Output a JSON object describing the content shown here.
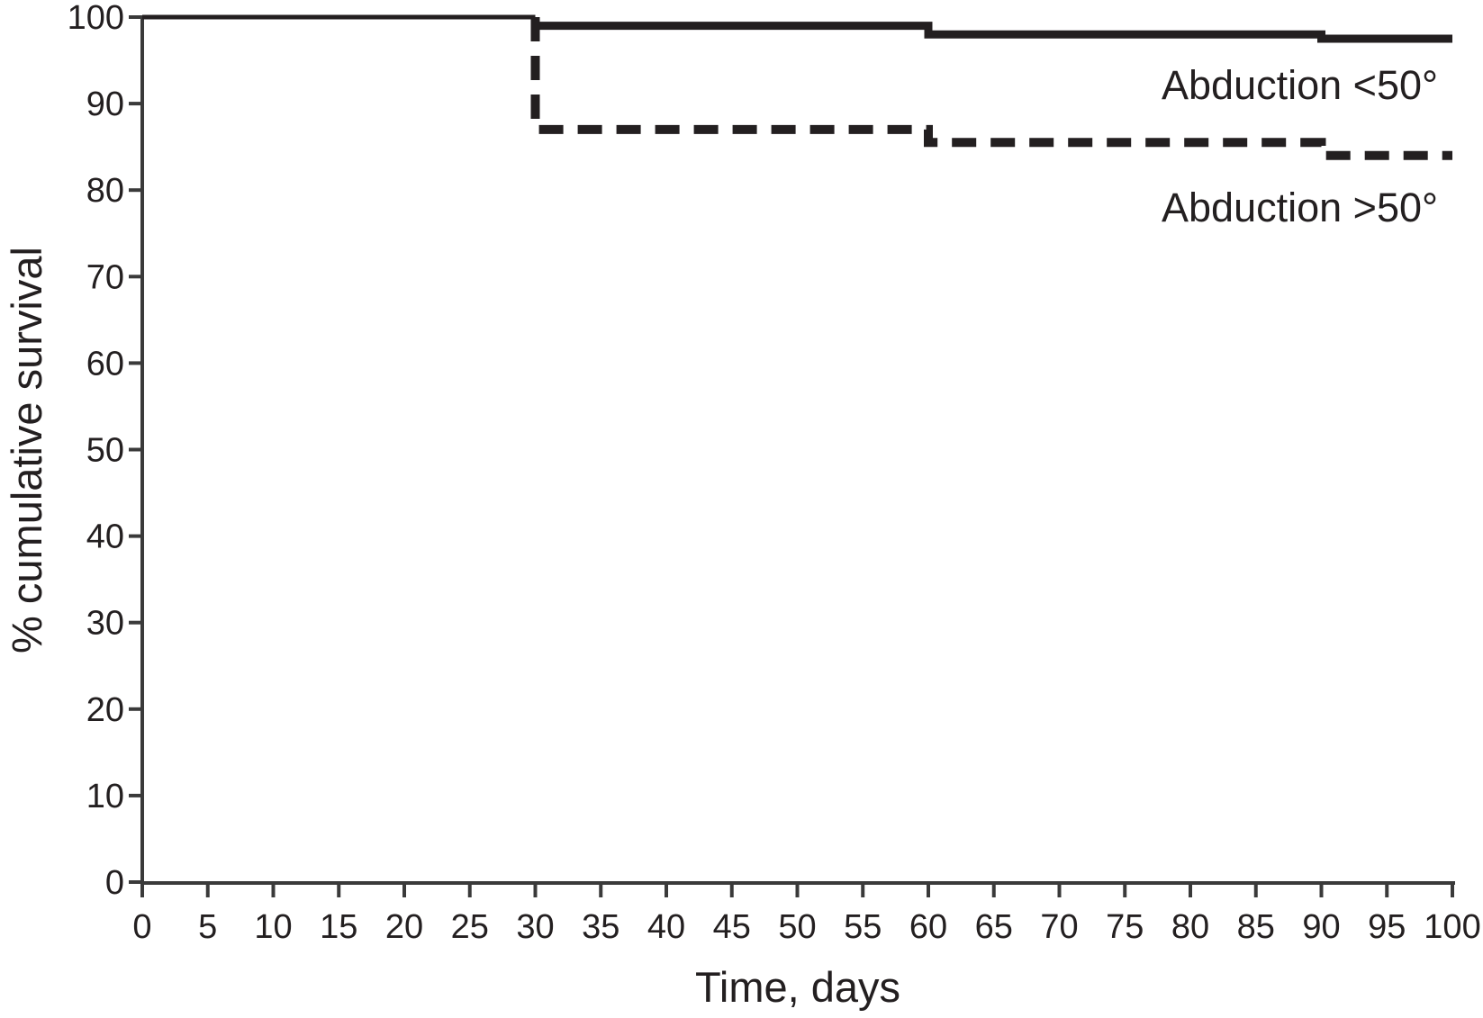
{
  "chart_data": {
    "type": "line",
    "subtype": "step-survival-kaplan-meier",
    "title": "",
    "xlabel": "Time, days",
    "ylabel": "% cumulative survival",
    "xlim": [
      0,
      100
    ],
    "ylim": [
      0,
      100
    ],
    "xticks": [
      0,
      5,
      10,
      15,
      20,
      25,
      30,
      35,
      40,
      45,
      50,
      55,
      60,
      65,
      70,
      75,
      80,
      85,
      90,
      95,
      100
    ],
    "yticks": [
      0,
      10,
      20,
      30,
      40,
      50,
      60,
      70,
      80,
      90,
      100
    ],
    "grid": false,
    "legend_position": "inline-right-of-plot",
    "series": [
      {
        "name": "Abduction <50°",
        "line_style": "solid",
        "points": [
          [
            0,
            100
          ],
          [
            30,
            100
          ],
          [
            30,
            99
          ],
          [
            60,
            99
          ],
          [
            60,
            98
          ],
          [
            90,
            98
          ],
          [
            90,
            97.5
          ],
          [
            100,
            97.5
          ]
        ]
      },
      {
        "name": "Abduction >50°",
        "line_style": "dashed",
        "points": [
          [
            0,
            100
          ],
          [
            30,
            100
          ],
          [
            30,
            87
          ],
          [
            60,
            87
          ],
          [
            60,
            85.5
          ],
          [
            90,
            85.5
          ],
          [
            90,
            84
          ],
          [
            100,
            84
          ]
        ]
      }
    ],
    "event_times_days": [
      30,
      60,
      90
    ],
    "colors": {
      "line": "#231f20",
      "text": "#231f20",
      "background": "#ffffff"
    }
  }
}
